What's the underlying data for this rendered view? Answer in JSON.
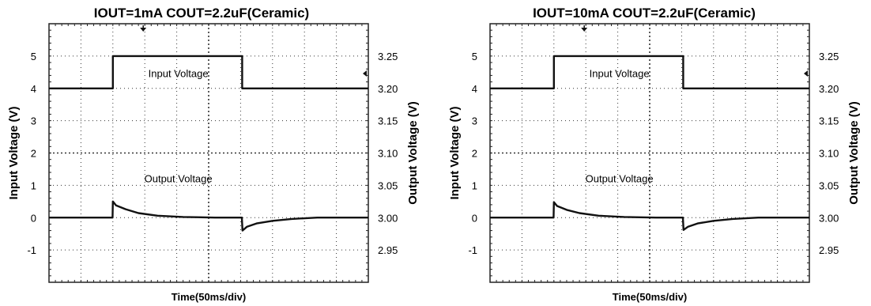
{
  "chart_data": [
    {
      "type": "line",
      "title": "IOUT=1mA COUT=2.2uF(Ceramic)",
      "xlabel": "Time(50ms/div)",
      "ylabel_left": "Input Voltage (V)",
      "ylabel_right": "Output Voltage (V)",
      "y_left_ticks": [
        "5",
        "4",
        "3",
        "2",
        "1",
        "0",
        "-1"
      ],
      "y_right_ticks": [
        "3.25",
        "3.20",
        "3.15",
        "3.10",
        "3.05",
        "3.00",
        "2.95"
      ],
      "y_left_lim": [
        -2,
        6
      ],
      "y_right_lim": [
        2.9,
        3.3
      ],
      "x_divisions": 10,
      "grid": true,
      "annotations": [
        "Input Voltage",
        "Output Voltage"
      ],
      "series": [
        {
          "name": "Input Voltage",
          "axis": "left",
          "x_div": [
            0,
            2.0,
            2.0,
            6.05,
            6.05,
            10
          ],
          "values": [
            4.0,
            4.0,
            5.0,
            5.0,
            4.0,
            4.0
          ]
        },
        {
          "name": "Output Voltage",
          "axis": "right",
          "x_div": [
            0,
            1.0,
            1.99,
            2.0,
            2.1,
            2.4,
            2.8,
            3.4,
            4.2,
            5.2,
            6.04,
            6.06,
            6.2,
            6.5,
            7.0,
            7.6,
            8.4,
            10
          ],
          "values": [
            3.0,
            3.0,
            3.0,
            3.025,
            3.019,
            3.013,
            3.007,
            3.003,
            3.001,
            3.0,
            3.0,
            2.98,
            2.986,
            2.991,
            2.995,
            2.998,
            3.0,
            3.0
          ]
        }
      ]
    },
    {
      "type": "line",
      "title": "IOUT=10mA COUT=2.2uF(Ceramic)",
      "xlabel": "Time(50ms/div)",
      "ylabel_left": "Input Voltage (V)",
      "ylabel_right": "Output Voltage (V)",
      "y_left_ticks": [
        "5",
        "4",
        "3",
        "2",
        "1",
        "0",
        "-1"
      ],
      "y_right_ticks": [
        "3.25",
        "3.20",
        "3.15",
        "3.10",
        "3.05",
        "3.00",
        "2.95"
      ],
      "y_left_lim": [
        -2,
        6
      ],
      "y_right_lim": [
        2.9,
        3.3
      ],
      "x_divisions": 10,
      "grid": true,
      "annotations": [
        "Input Voltage",
        "Output Voltage"
      ],
      "series": [
        {
          "name": "Input Voltage",
          "axis": "left",
          "x_div": [
            0,
            2.0,
            2.0,
            6.05,
            6.05,
            10
          ],
          "values": [
            4.0,
            4.0,
            5.0,
            5.0,
            4.0,
            4.0
          ]
        },
        {
          "name": "Output Voltage",
          "axis": "right",
          "x_div": [
            0,
            1.0,
            1.99,
            2.0,
            2.1,
            2.4,
            2.8,
            3.4,
            4.2,
            5.2,
            6.04,
            6.06,
            6.2,
            6.5,
            7.0,
            7.6,
            8.4,
            10
          ],
          "values": [
            3.0,
            3.0,
            3.0,
            3.024,
            3.018,
            3.012,
            3.007,
            3.003,
            3.001,
            3.0,
            3.0,
            2.981,
            2.986,
            2.991,
            2.995,
            2.998,
            3.0,
            3.0
          ]
        }
      ]
    }
  ]
}
